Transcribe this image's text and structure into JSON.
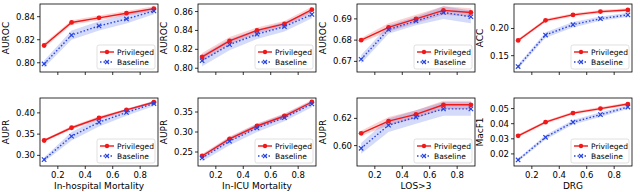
{
  "chart_data": [
    {
      "type": "line",
      "ylabel": "AUROC",
      "x": [
        0.1,
        0.3,
        0.5,
        0.7,
        0.9
      ],
      "xlim": [
        0.07,
        0.93
      ],
      "xticks": [
        0.2,
        0.4,
        0.6,
        0.8
      ],
      "ylim": [
        0.792,
        0.851
      ],
      "yticks": [
        {
          "value": 0.8,
          "label": "0.80"
        },
        0.82,
        0.84
      ],
      "tick_labels": "y",
      "legend": "lower right",
      "series": [
        {
          "name": "Privileged",
          "color": "#f01818",
          "marker": "circle",
          "line_style": "solid",
          "values": [
            0.815,
            0.835,
            0.839,
            0.843,
            0.847
          ],
          "errors": [
            0.002,
            0.002,
            0.002,
            0.002,
            0.002
          ]
        },
        {
          "name": "Baseline",
          "color": "#2844e0",
          "marker": "x",
          "line_style": "dotted",
          "values": [
            0.799,
            0.824,
            0.832,
            0.838,
            0.845
          ],
          "errors": [
            0.003,
            0.004,
            0.004,
            0.004,
            0.003
          ]
        }
      ]
    },
    {
      "type": "line",
      "ylabel": "AUROC",
      "x": [
        0.1,
        0.3,
        0.5,
        0.7,
        0.9
      ],
      "xlim": [
        0.07,
        0.93
      ],
      "xticks": [
        0.2,
        0.4,
        0.6,
        0.8
      ],
      "ylim": [
        0.796,
        0.868
      ],
      "yticks": [
        {
          "value": 0.8,
          "label": "0.80"
        },
        0.82,
        0.84,
        0.86
      ],
      "tick_labels": "y",
      "legend": "lower right",
      "series": [
        {
          "name": "Privileged",
          "color": "#f01818",
          "marker": "circle",
          "line_style": "solid",
          "values": [
            0.812,
            0.829,
            0.84,
            0.847,
            0.862
          ],
          "errors": [
            0.004,
            0.004,
            0.003,
            0.003,
            0.003
          ]
        },
        {
          "name": "Baseline",
          "color": "#2844e0",
          "marker": "x",
          "line_style": "dotted",
          "values": [
            0.808,
            0.825,
            0.836,
            0.844,
            0.857
          ],
          "errors": [
            0.006,
            0.006,
            0.005,
            0.005,
            0.004
          ]
        }
      ]
    },
    {
      "type": "line",
      "ylabel": "AUROC",
      "x": [
        0.1,
        0.3,
        0.5,
        0.7,
        0.9
      ],
      "xlim": [
        0.07,
        0.93
      ],
      "xticks": [
        0.2,
        0.4,
        0.6,
        0.8
      ],
      "ylim": [
        0.665,
        0.697
      ],
      "yticks": [
        0.67,
        0.68,
        0.69
      ],
      "tick_labels": "y",
      "legend": "lower right",
      "series": [
        {
          "name": "Privileged",
          "color": "#f01818",
          "marker": "circle",
          "line_style": "solid",
          "values": [
            0.68,
            0.686,
            0.69,
            0.694,
            0.693
          ],
          "errors": [
            0.001,
            0.002,
            0.002,
            0.002,
            0.002
          ]
        },
        {
          "name": "Baseline",
          "color": "#2844e0",
          "marker": "x",
          "line_style": "dotted",
          "values": [
            0.671,
            0.685,
            0.689,
            0.693,
            0.691
          ],
          "errors": [
            0.002,
            0.002,
            0.002,
            0.003,
            0.003
          ]
        }
      ]
    },
    {
      "type": "line",
      "ylabel": "ACC",
      "x": [
        0.1,
        0.3,
        0.5,
        0.7,
        0.9
      ],
      "xlim": [
        0.07,
        0.93
      ],
      "xticks": [
        0.2,
        0.4,
        0.6,
        0.8
      ],
      "ylim": [
        0.12,
        0.245
      ],
      "yticks": [
        0.15,
        {
          "value": 0.2,
          "label": "0.20"
        }
      ],
      "tick_labels": "y",
      "legend": "lower right",
      "series": [
        {
          "name": "Privileged",
          "color": "#f01818",
          "marker": "circle",
          "line_style": "solid",
          "values": [
            0.178,
            0.215,
            0.225,
            0.231,
            0.234
          ],
          "errors": [
            0.003,
            0.003,
            0.003,
            0.003,
            0.003
          ]
        },
        {
          "name": "Baseline",
          "color": "#2844e0",
          "marker": "x",
          "line_style": "dotted",
          "values": [
            0.13,
            0.188,
            0.207,
            0.218,
            0.225
          ],
          "errors": [
            0.004,
            0.005,
            0.005,
            0.004,
            0.004
          ]
        }
      ]
    },
    {
      "type": "line",
      "xlabel": "In-hospital Mortality",
      "ylabel": "AUPR",
      "x": [
        0.1,
        0.3,
        0.5,
        0.7,
        0.9
      ],
      "xlim": [
        0.07,
        0.93
      ],
      "xticks": [
        0.2,
        0.4,
        0.6,
        0.8
      ],
      "ylim": [
        0.275,
        0.435
      ],
      "yticks": [
        {
          "value": 0.3,
          "label": "0.30"
        },
        0.35,
        {
          "value": 0.4,
          "label": "0.40"
        }
      ],
      "legend": "lower right",
      "series": [
        {
          "name": "Privileged",
          "color": "#f01818",
          "marker": "circle",
          "line_style": "solid",
          "values": [
            0.335,
            0.365,
            0.388,
            0.407,
            0.425
          ],
          "errors": [
            0.003,
            0.004,
            0.004,
            0.003,
            0.003
          ]
        },
        {
          "name": "Baseline",
          "color": "#2844e0",
          "marker": "x",
          "line_style": "dotted",
          "values": [
            0.29,
            0.345,
            0.378,
            0.401,
            0.422
          ],
          "errors": [
            0.005,
            0.01,
            0.01,
            0.008,
            0.006
          ]
        }
      ]
    },
    {
      "type": "line",
      "xlabel": "In-ICU Mortality",
      "ylabel": "AUPR",
      "x": [
        0.1,
        0.3,
        0.5,
        0.7,
        0.9
      ],
      "xlim": [
        0.07,
        0.93
      ],
      "xticks": [
        0.2,
        0.4,
        0.6,
        0.8
      ],
      "ylim": [
        0.215,
        0.385
      ],
      "yticks": [
        0.25,
        {
          "value": 0.3,
          "label": "0.30"
        },
        0.35
      ],
      "legend": "lower right",
      "series": [
        {
          "name": "Privileged",
          "color": "#f01818",
          "marker": "circle",
          "line_style": "solid",
          "values": [
            0.24,
            0.283,
            0.315,
            0.34,
            0.375
          ],
          "errors": [
            0.005,
            0.006,
            0.006,
            0.006,
            0.005
          ]
        },
        {
          "name": "Baseline",
          "color": "#2844e0",
          "marker": "x",
          "line_style": "dotted",
          "values": [
            0.235,
            0.277,
            0.31,
            0.336,
            0.37
          ],
          "errors": [
            0.008,
            0.01,
            0.01,
            0.009,
            0.008
          ]
        }
      ]
    },
    {
      "type": "line",
      "xlabel": "LOS>3",
      "ylabel": "AUPR",
      "x": [
        0.1,
        0.3,
        0.5,
        0.7,
        0.9
      ],
      "xlim": [
        0.07,
        0.93
      ],
      "xticks": [
        0.2,
        0.4,
        0.6,
        0.8
      ],
      "ylim": [
        0.585,
        0.635
      ],
      "yticks": [
        {
          "value": 0.6,
          "label": "0.60"
        },
        0.62
      ],
      "legend": "lower right",
      "series": [
        {
          "name": "Privileged",
          "color": "#f01818",
          "marker": "circle",
          "line_style": "solid",
          "values": [
            0.609,
            0.618,
            0.623,
            0.63,
            0.63
          ],
          "errors": [
            0.002,
            0.003,
            0.003,
            0.003,
            0.003
          ]
        },
        {
          "name": "Baseline",
          "color": "#2844e0",
          "marker": "x",
          "line_style": "dotted",
          "values": [
            0.598,
            0.615,
            0.621,
            0.627,
            0.627
          ],
          "errors": [
            0.004,
            0.005,
            0.005,
            0.005,
            0.005
          ]
        }
      ]
    },
    {
      "type": "line",
      "xlabel": "DRG",
      "ylabel": "MacF1",
      "x": [
        0.1,
        0.3,
        0.5,
        0.7,
        0.9
      ],
      "xlim": [
        0.07,
        0.93
      ],
      "xticks": [
        0.2,
        0.4,
        0.6,
        0.8
      ],
      "ylim": [
        0.012,
        0.057
      ],
      "yticks": [
        0.02,
        0.03,
        0.04,
        0.05
      ],
      "legend": "lower right",
      "series": [
        {
          "name": "Privileged",
          "color": "#f01818",
          "marker": "circle",
          "line_style": "solid",
          "values": [
            0.032,
            0.041,
            0.047,
            0.05,
            0.053
          ],
          "errors": [
            0.001,
            0.001,
            0.001,
            0.001,
            0.001
          ]
        },
        {
          "name": "Baseline",
          "color": "#2844e0",
          "marker": "x",
          "line_style": "dotted",
          "values": [
            0.016,
            0.031,
            0.041,
            0.046,
            0.051
          ],
          "errors": [
            0.001,
            0.0015,
            0.0015,
            0.0015,
            0.0012
          ]
        }
      ]
    }
  ]
}
